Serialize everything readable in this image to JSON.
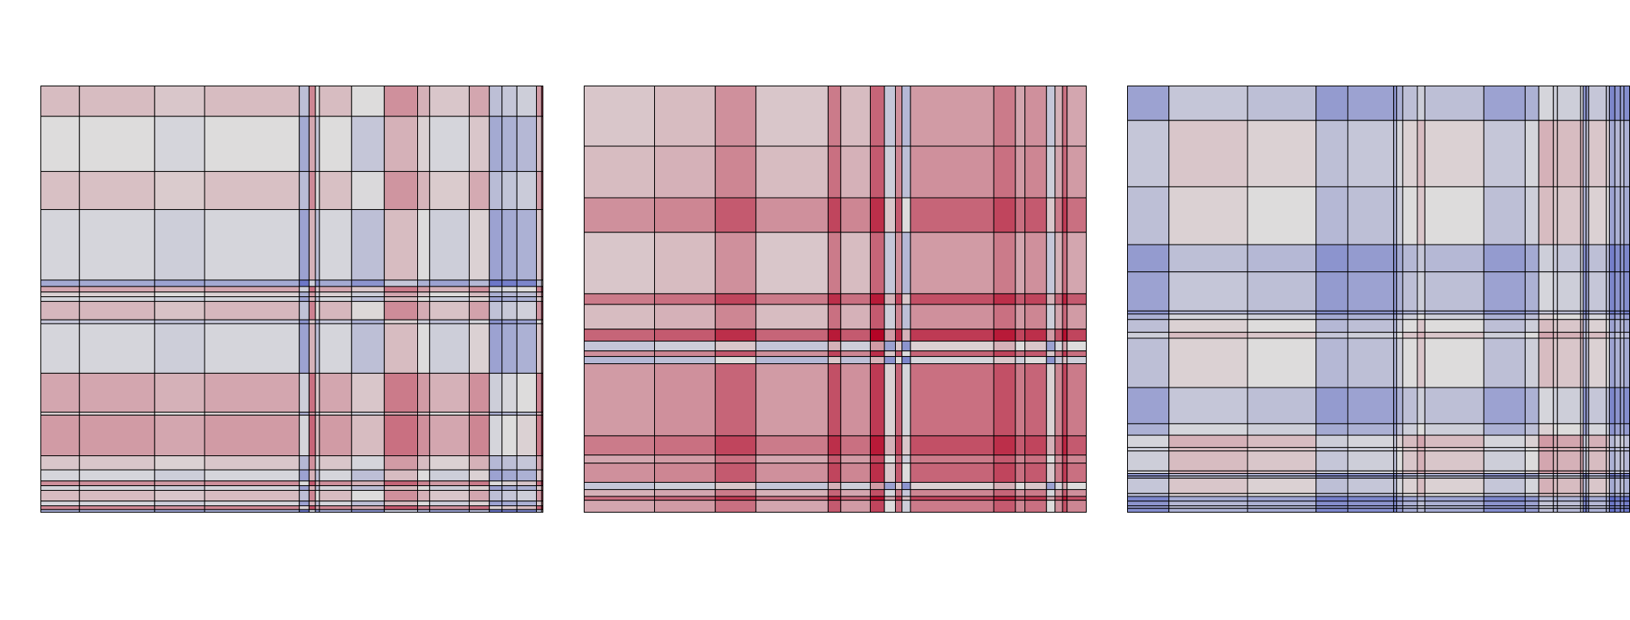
{
  "colors": {
    "negative": "#3b4cc0",
    "neutral": "#dddcdc",
    "positive": "#b40426",
    "line": "#000000"
  },
  "chart_data": [
    {
      "type": "heatmap",
      "title": "",
      "xlabel": "",
      "ylabel": "",
      "color_scale": "coolwarm",
      "clim": [
        -1,
        1
      ],
      "grid": true,
      "col_weights": [
        0.068,
        0.131,
        0.087,
        0.165,
        0.017,
        0.011,
        0.007,
        0.056,
        0.057,
        0.058,
        0.021,
        0.069,
        0.035,
        0.022,
        0.026,
        0.034,
        0.009,
        0.003
      ],
      "row_weights": [
        0.072,
        0.129,
        0.089,
        0.165,
        0.015,
        0.013,
        0.011,
        0.011,
        0.043,
        0.009,
        0.116,
        0.091,
        0.007,
        0.095,
        0.033,
        0.026,
        0.011,
        0.011,
        0.025,
        0.011,
        0.009,
        0.007
      ],
      "row_values": [
        0.1,
        -0.05,
        0.08,
        -0.1,
        -0.4,
        0.2,
        0.0,
        -0.1,
        0.12,
        -0.2,
        -0.1,
        0.2,
        0.0,
        0.25,
        0.05,
        -0.1,
        0.3,
        -0.1,
        0.1,
        -0.1,
        0.35,
        -0.4
      ],
      "col_values": [
        0.05,
        0.05,
        0.0,
        0.05,
        -0.3,
        0.3,
        -0.1,
        0.05,
        -0.1,
        0.25,
        0.1,
        0.0,
        0.15,
        -0.3,
        -0.25,
        -0.2,
        0.2,
        0.5
      ]
    },
    {
      "type": "heatmap",
      "title": "",
      "xlabel": "",
      "ylabel": "",
      "color_scale": "coolwarm",
      "clim": [
        -1,
        1
      ],
      "grid": true,
      "col_weights": [
        0.141,
        0.121,
        0.081,
        0.144,
        0.025,
        0.059,
        0.028,
        0.022,
        0.013,
        0.017,
        0.166,
        0.043,
        0.019,
        0.043,
        0.017,
        0.015,
        0.009,
        0.039
      ],
      "row_weights": [
        0.142,
        0.121,
        0.081,
        0.144,
        0.025,
        0.058,
        0.028,
        0.023,
        0.013,
        0.017,
        0.169,
        0.045,
        0.019,
        0.045,
        0.017,
        0.016,
        0.009,
        0.029
      ],
      "row_values": [
        0.05,
        0.1,
        0.3,
        0.05,
        0.4,
        0.1,
        0.5,
        -0.2,
        0.3,
        -0.3,
        0.25,
        0.4,
        0.2,
        0.3,
        -0.2,
        0.15,
        0.45,
        0.2
      ],
      "col_values": [
        0.05,
        0.1,
        0.3,
        0.05,
        0.4,
        0.1,
        0.5,
        -0.2,
        0.3,
        -0.3,
        0.25,
        0.4,
        0.2,
        0.3,
        -0.2,
        0.15,
        0.45,
        0.2
      ]
    },
    {
      "type": "heatmap",
      "title": "",
      "xlabel": "",
      "ylabel": "",
      "color_scale": "coolwarm",
      "clim": [
        -1,
        1
      ],
      "grid": true,
      "col_weights": [
        0.083,
        0.156,
        0.136,
        0.063,
        0.091,
        0.006,
        0.012,
        0.029,
        0.015,
        0.117,
        0.082,
        0.027,
        0.029,
        0.008,
        0.046,
        0.005,
        0.006,
        0.005,
        0.035,
        0.006,
        0.011,
        0.011,
        0.007,
        0.012
      ],
      "row_weights": [
        0.082,
        0.156,
        0.136,
        0.064,
        0.092,
        0.007,
        0.013,
        0.03,
        0.014,
        0.116,
        0.085,
        0.027,
        0.029,
        0.008,
        0.047,
        0.006,
        0.006,
        0.005,
        0.036,
        0.007,
        0.011,
        0.011,
        0.006,
        0.01
      ],
      "row_values": [
        -0.2,
        0.05,
        0.0,
        -0.25,
        -0.2,
        -0.3,
        -0.1,
        0.0,
        0.1,
        0.0,
        -0.2,
        -0.1,
        0.15,
        0.1,
        0.1,
        0.15,
        -0.3,
        -0.2,
        0.05,
        0.0,
        -0.4,
        -0.3,
        -0.25,
        -0.35
      ],
      "col_values": [
        -0.2,
        0.05,
        0.0,
        -0.25,
        -0.2,
        -0.3,
        -0.1,
        0.0,
        0.1,
        0.0,
        -0.2,
        -0.1,
        0.15,
        0.1,
        0.1,
        0.15,
        -0.3,
        -0.2,
        0.05,
        0.0,
        -0.4,
        -0.3,
        -0.25,
        -0.35
      ]
    }
  ]
}
